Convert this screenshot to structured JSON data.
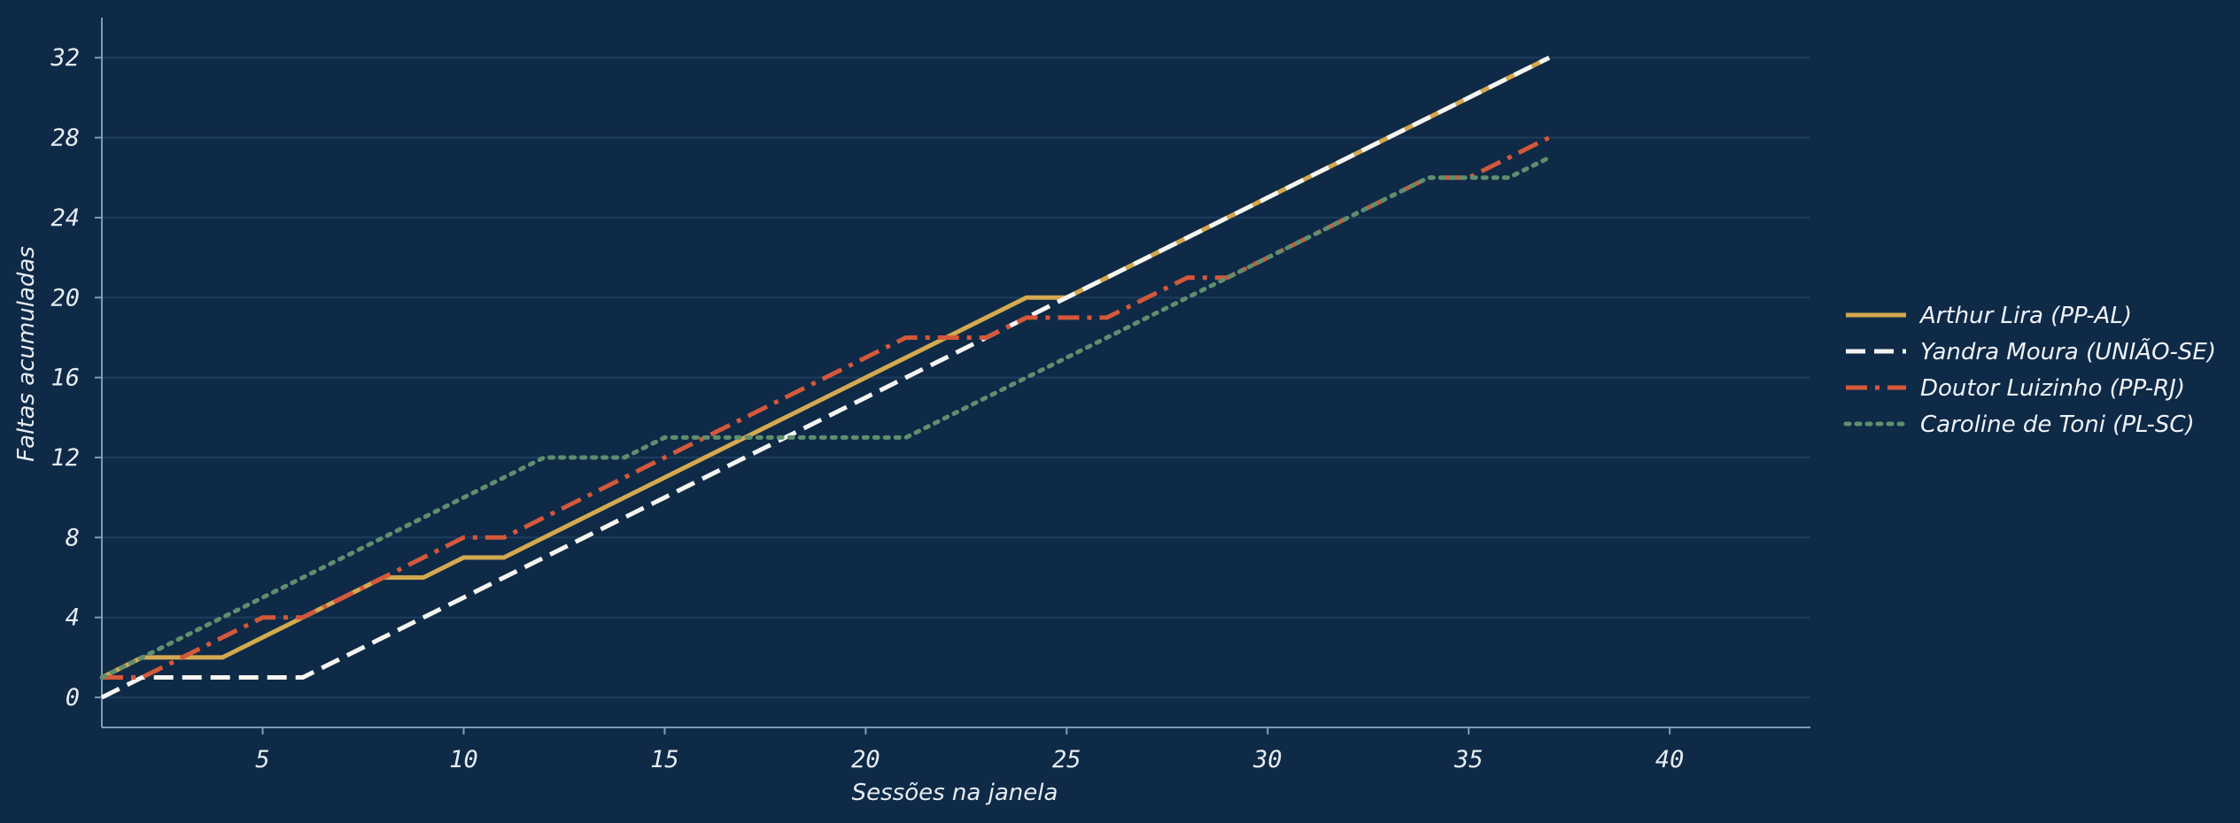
{
  "chart_data": {
    "type": "line",
    "xlabel": "Sessões na janela",
    "ylabel": "Faltas acumuladas",
    "xlim": [
      1,
      43.5
    ],
    "ylim": [
      -1.5,
      34
    ],
    "xticks": [
      5,
      10,
      15,
      20,
      25,
      30,
      35,
      40
    ],
    "yticks": [
      0,
      4,
      8,
      12,
      16,
      20,
      24,
      28,
      32
    ],
    "grid": "horizontal",
    "legend_position": "right",
    "background_color": "#0f2a47",
    "series": [
      {
        "name": "Arthur Lira (PP-AL)",
        "color": "#d4a94f",
        "line_style": "solid",
        "x": [
          1,
          2,
          3,
          4,
          5,
          6,
          7,
          8,
          9,
          10,
          11,
          12,
          13,
          14,
          15,
          16,
          17,
          18,
          19,
          20,
          21,
          22,
          23,
          24,
          25,
          26,
          27,
          28,
          29,
          30,
          31,
          32,
          33,
          34,
          35,
          36,
          37
        ],
        "values": [
          1,
          2,
          2,
          2,
          3,
          4,
          5,
          6,
          6,
          7,
          7,
          8,
          9,
          10,
          11,
          12,
          13,
          14,
          15,
          16,
          17,
          18,
          19,
          20,
          20,
          21,
          22,
          23,
          24,
          25,
          26,
          27,
          28,
          29,
          30,
          31,
          32
        ]
      },
      {
        "name": "Yandra Moura (UNIÃO-SE)",
        "color": "#f5f5f0",
        "line_style": "dashed",
        "x": [
          1,
          2,
          3,
          4,
          5,
          6,
          7,
          8,
          9,
          10,
          11,
          12,
          13,
          14,
          15,
          16,
          17,
          18,
          19,
          20,
          21,
          22,
          23,
          24,
          25,
          26,
          27,
          28,
          29,
          30,
          31,
          32,
          33,
          34,
          35,
          36,
          37
        ],
        "values": [
          0,
          1,
          1,
          1,
          1,
          1,
          2,
          3,
          4,
          5,
          6,
          7,
          8,
          9,
          10,
          11,
          12,
          13,
          14,
          15,
          16,
          17,
          18,
          19,
          20,
          21,
          22,
          23,
          24,
          25,
          26,
          27,
          28,
          29,
          30,
          31,
          32
        ]
      },
      {
        "name": "Doutor Luizinho (PP-RJ)",
        "color": "#d4583a",
        "line_style": "dashdot",
        "x": [
          1,
          2,
          3,
          4,
          5,
          6,
          7,
          8,
          9,
          10,
          11,
          12,
          13,
          14,
          15,
          16,
          17,
          18,
          19,
          20,
          21,
          22,
          23,
          24,
          25,
          26,
          27,
          28,
          29,
          30,
          31,
          32,
          33,
          34,
          35,
          36,
          37
        ],
        "values": [
          1,
          1,
          2,
          3,
          4,
          4,
          5,
          6,
          7,
          8,
          8,
          9,
          10,
          11,
          12,
          13,
          14,
          15,
          16,
          17,
          18,
          18,
          18,
          19,
          19,
          19,
          20,
          21,
          21,
          22,
          23,
          24,
          25,
          26,
          26,
          27,
          28
        ]
      },
      {
        "name": "Caroline de Toni (PL-SC)",
        "color": "#5f8f6e",
        "line_style": "dotted",
        "x": [
          1,
          2,
          3,
          4,
          5,
          6,
          7,
          8,
          9,
          10,
          11,
          12,
          13,
          14,
          15,
          16,
          17,
          18,
          19,
          20,
          21,
          22,
          23,
          24,
          25,
          26,
          27,
          28,
          29,
          30,
          31,
          32,
          33,
          34,
          35,
          36,
          37
        ],
        "values": [
          1,
          2,
          3,
          4,
          5,
          6,
          7,
          8,
          9,
          10,
          11,
          12,
          12,
          12,
          13,
          13,
          13,
          13,
          13,
          13,
          13,
          14,
          15,
          16,
          17,
          18,
          19,
          20,
          21,
          22,
          23,
          24,
          25,
          26,
          26,
          26,
          27
        ]
      }
    ]
  }
}
